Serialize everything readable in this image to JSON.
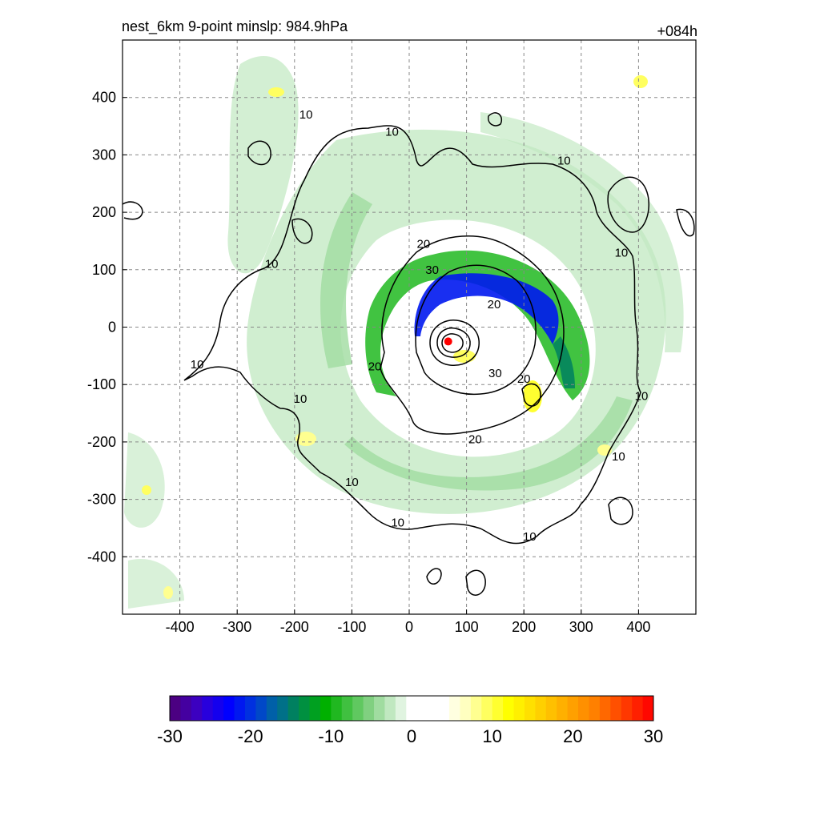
{
  "chart_data": {
    "type": "contour",
    "title": "nest_6km  9-point minslp: 984.9hPa",
    "time_label": "+084h",
    "xlim": [
      -500,
      500
    ],
    "ylim": [
      -500,
      500
    ],
    "x_ticks": [
      -400,
      -300,
      -200,
      -100,
      0,
      100,
      200,
      300,
      400
    ],
    "y_ticks": [
      -400,
      -300,
      -200,
      -100,
      0,
      100,
      200,
      300,
      400
    ],
    "grid": true,
    "center_marker": {
      "x": 68,
      "y": -25,
      "color": "#ff0000"
    },
    "contour_lines": {
      "color": "#000000",
      "levels": [
        10,
        20,
        30
      ]
    },
    "contour_label_positions": [
      {
        "text": "10",
        "x": -180,
        "y": 370
      },
      {
        "text": "10",
        "x": -30,
        "y": 340
      },
      {
        "text": "10",
        "x": 270,
        "y": 290
      },
      {
        "text": "10",
        "x": 370,
        "y": 130
      },
      {
        "text": "10",
        "x": -240,
        "y": 110
      },
      {
        "text": "10",
        "x": -370,
        "y": -65
      },
      {
        "text": "10",
        "x": -190,
        "y": -125
      },
      {
        "text": "10",
        "x": 405,
        "y": -120
      },
      {
        "text": "10",
        "x": 365,
        "y": -225
      },
      {
        "text": "10",
        "x": -100,
        "y": -270
      },
      {
        "text": "10",
        "x": -20,
        "y": -340
      },
      {
        "text": "10",
        "x": 210,
        "y": -365
      },
      {
        "text": "20",
        "x": 25,
        "y": 145
      },
      {
        "text": "20",
        "x": 148,
        "y": 40
      },
      {
        "text": "20",
        "x": -60,
        "y": -68
      },
      {
        "text": "20",
        "x": 200,
        "y": -90
      },
      {
        "text": "20",
        "x": 115,
        "y": -195
      },
      {
        "text": "30",
        "x": 40,
        "y": 100
      },
      {
        "text": "30",
        "x": 150,
        "y": -80
      }
    ],
    "colorbar": {
      "min": -30,
      "max": 30,
      "tick_labels": [
        "-30",
        "-20",
        "-10",
        "0",
        "10",
        "20",
        "30"
      ],
      "colors": [
        "#4b0082",
        "#4400a0",
        "#3c00c0",
        "#2800dd",
        "#1400ee",
        "#0000ff",
        "#0018f0",
        "#0030e0",
        "#0048c8",
        "#0060a8",
        "#007088",
        "#008060",
        "#009040",
        "#00a020",
        "#00b000",
        "#20b820",
        "#40c040",
        "#60c860",
        "#80d080",
        "#a0dca0",
        "#c0e8c0",
        "#e0f4e0",
        "#ffffff",
        "#ffffff",
        "#ffffff",
        "#ffffff",
        "#ffffe0",
        "#ffffc0",
        "#ffff90",
        "#ffff60",
        "#ffff30",
        "#ffff00",
        "#fff000",
        "#ffe000",
        "#ffd000",
        "#ffc000",
        "#ffb000",
        "#ffa000",
        "#ff9000",
        "#ff8000",
        "#ff6800",
        "#ff5000",
        "#ff3800",
        "#ff2000",
        "#ff0800"
      ]
    }
  }
}
